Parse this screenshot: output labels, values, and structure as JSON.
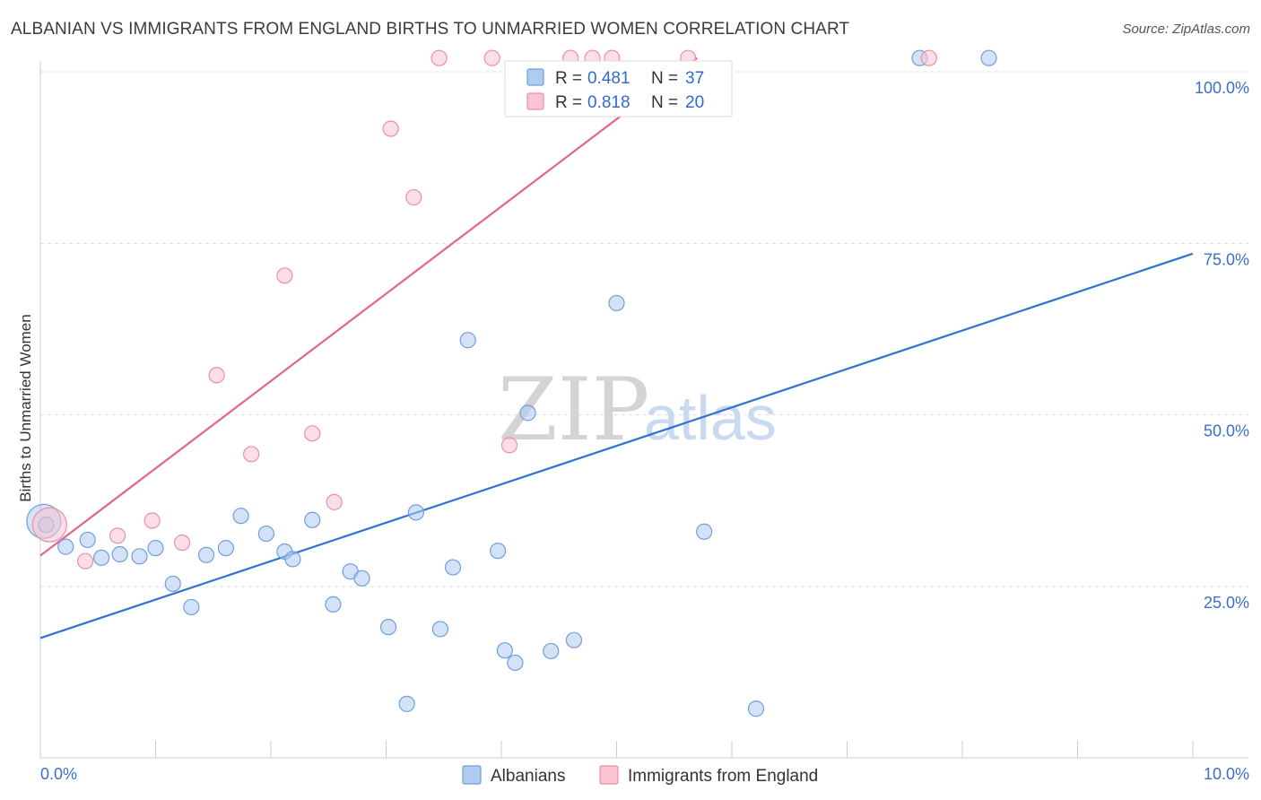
{
  "title": "ALBANIAN VS IMMIGRANTS FROM ENGLAND BIRTHS TO UNMARRIED WOMEN CORRELATION CHART",
  "source": "Source: ZipAtlas.com",
  "watermark": {
    "zip": "ZIP",
    "atlas": "atlas"
  },
  "colors": {
    "albanians_fill": "#aecbf0",
    "albanians_stroke": "#6f9fdc",
    "albanians_line": "#2e72d2",
    "england_fill": "#f9c4d2",
    "england_stroke": "#ea8fa8",
    "england_line": "#e0668c",
    "grid": "#dddddd",
    "axis_label": "#3b6fc9"
  },
  "legend_top": [
    {
      "series": "albanians",
      "r_label": "R = ",
      "r_value": "0.481",
      "n_label": "N = ",
      "n_value": "37"
    },
    {
      "series": "england",
      "r_label": "R = ",
      "r_value": "0.818",
      "n_label": "N = ",
      "n_value": "20"
    }
  ],
  "chart_data": {
    "type": "scatter",
    "title": "ALBANIAN VS IMMIGRANTS FROM ENGLAND BIRTHS TO UNMARRIED WOMEN CORRELATION CHART",
    "xlabel": "",
    "ylabel": "Births to Unmarried Women",
    "xlim": [
      0,
      10
    ],
    "ylim": [
      0,
      100
    ],
    "x_tick_labels": [
      "0.0%",
      "10.0%"
    ],
    "y_ticks": [
      25,
      50,
      75,
      100
    ],
    "y_tick_labels": [
      "25.0%",
      "50.0%",
      "75.0%",
      "100.0%"
    ],
    "grid": true,
    "legend": "bottom-center",
    "series": [
      {
        "name": "Albanians",
        "key": "albanians",
        "r": 0.481,
        "n": 37,
        "trend": {
          "x0": 0,
          "y0": 17.5,
          "x1": 10,
          "y1": 73.5
        },
        "points": [
          {
            "x": 0.03,
            "y": 34.5,
            "big": true
          },
          {
            "x": 0.22,
            "y": 30.8
          },
          {
            "x": 0.41,
            "y": 31.8
          },
          {
            "x": 0.53,
            "y": 29.2
          },
          {
            "x": 0.69,
            "y": 29.7
          },
          {
            "x": 0.86,
            "y": 29.4
          },
          {
            "x": 1.0,
            "y": 30.6
          },
          {
            "x": 1.15,
            "y": 25.4
          },
          {
            "x": 1.31,
            "y": 22.0
          },
          {
            "x": 1.44,
            "y": 29.6
          },
          {
            "x": 1.61,
            "y": 30.6
          },
          {
            "x": 1.74,
            "y": 35.3
          },
          {
            "x": 1.96,
            "y": 32.7
          },
          {
            "x": 2.12,
            "y": 30.1
          },
          {
            "x": 2.19,
            "y": 29.0
          },
          {
            "x": 2.36,
            "y": 34.7
          },
          {
            "x": 2.54,
            "y": 22.4
          },
          {
            "x": 2.69,
            "y": 27.2
          },
          {
            "x": 2.79,
            "y": 26.2
          },
          {
            "x": 3.02,
            "y": 19.1
          },
          {
            "x": 3.18,
            "y": 7.9
          },
          {
            "x": 3.26,
            "y": 35.8
          },
          {
            "x": 3.47,
            "y": 18.8
          },
          {
            "x": 3.58,
            "y": 27.8
          },
          {
            "x": 3.71,
            "y": 60.9
          },
          {
            "x": 3.97,
            "y": 30.2
          },
          {
            "x": 4.03,
            "y": 15.7
          },
          {
            "x": 4.12,
            "y": 13.9
          },
          {
            "x": 4.23,
            "y": 50.3
          },
          {
            "x": 4.43,
            "y": 15.6
          },
          {
            "x": 4.63,
            "y": 17.2
          },
          {
            "x": 5.0,
            "y": 66.3
          },
          {
            "x": 5.76,
            "y": 33.0
          },
          {
            "x": 6.21,
            "y": 7.2
          },
          {
            "x": 7.63,
            "y": 102.0
          },
          {
            "x": 8.23,
            "y": 102.0
          },
          {
            "x": 0.05,
            "y": 34.0
          }
        ]
      },
      {
        "name": "Immigrants from England",
        "key": "england",
        "r": 0.818,
        "n": 20,
        "trend": {
          "x0": 0,
          "y0": 29.5,
          "x1": 5.7,
          "y1": 102.0
        },
        "points": [
          {
            "x": 0.08,
            "y": 34.0,
            "big": true
          },
          {
            "x": 0.39,
            "y": 28.7
          },
          {
            "x": 0.67,
            "y": 32.4
          },
          {
            "x": 0.97,
            "y": 34.6
          },
          {
            "x": 1.23,
            "y": 31.4
          },
          {
            "x": 1.53,
            "y": 55.8
          },
          {
            "x": 1.83,
            "y": 44.3
          },
          {
            "x": 2.12,
            "y": 70.3
          },
          {
            "x": 2.36,
            "y": 47.3
          },
          {
            "x": 2.55,
            "y": 37.3
          },
          {
            "x": 3.04,
            "y": 91.7
          },
          {
            "x": 3.24,
            "y": 81.7
          },
          {
            "x": 3.46,
            "y": 102.0
          },
          {
            "x": 3.92,
            "y": 102.0
          },
          {
            "x": 4.07,
            "y": 45.6
          },
          {
            "x": 4.79,
            "y": 102.0
          },
          {
            "x": 4.96,
            "y": 102.0
          },
          {
            "x": 5.62,
            "y": 102.0
          },
          {
            "x": 7.71,
            "y": 102.0
          },
          {
            "x": 4.6,
            "y": 102.0
          }
        ]
      }
    ]
  },
  "legend_bottom": [
    {
      "series": "albanians",
      "label": "Albanians"
    },
    {
      "series": "england",
      "label": "Immigrants from England"
    }
  ]
}
